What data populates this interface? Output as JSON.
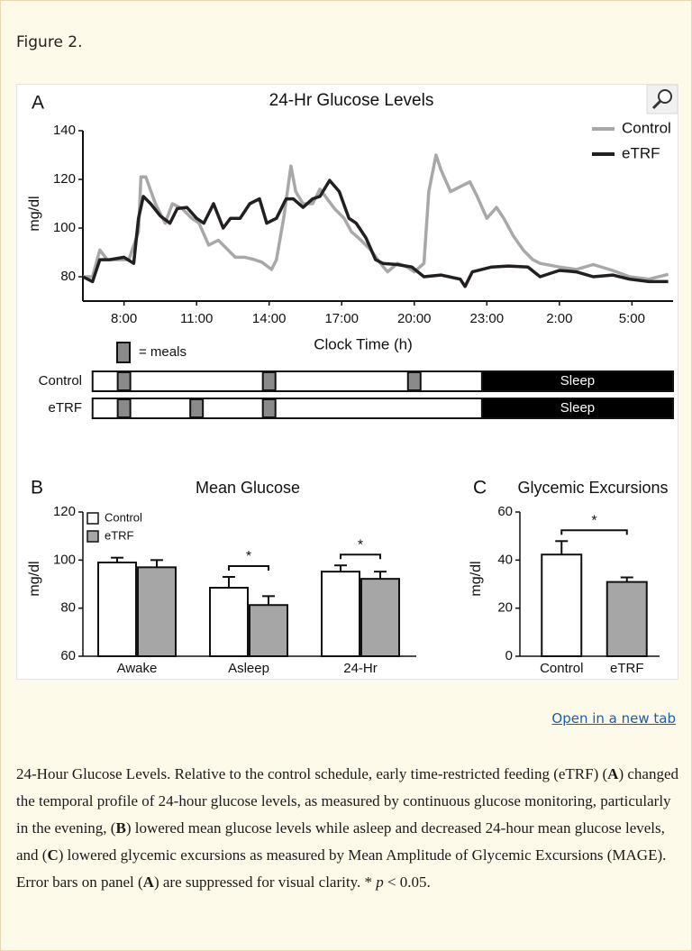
{
  "label": "Figure 2.",
  "chart_data": [
    {
      "type": "line",
      "panel": "A",
      "title": "24-Hr Glucose Levels",
      "ylabel": "mg/dl",
      "xlabel": "Clock Time (h)",
      "xlim": [
        6.3,
        30.7
      ],
      "ylim": [
        70,
        140
      ],
      "xticks": [
        {
          "value": 8,
          "label": "8:00"
        },
        {
          "value": 11,
          "label": "11:00"
        },
        {
          "value": 14,
          "label": "14:00"
        },
        {
          "value": 17,
          "label": "17:00"
        },
        {
          "value": 20,
          "label": "20:00"
        },
        {
          "value": 23,
          "label": "23:00"
        },
        {
          "value": 26,
          "label": "2:00"
        },
        {
          "value": 29,
          "label": "5:00"
        }
      ],
      "yticks": [
        80,
        100,
        120,
        140
      ],
      "legend": "upper right",
      "series": [
        {
          "name": "Control",
          "color": "#a8a8a8",
          "x": [
            6.3,
            6.7,
            7.0,
            7.3,
            7.6,
            8.2,
            8.6,
            8.7,
            8.9,
            9.3,
            9.7,
            10.0,
            10.4,
            10.8,
            11.1,
            11.5,
            11.9,
            12.3,
            12.6,
            13.0,
            13.4,
            13.7,
            14.1,
            14.3,
            14.6,
            14.9,
            15.1,
            15.4,
            15.8,
            16.1,
            16.4,
            16.7,
            17.1,
            17.4,
            17.8,
            18.2,
            18.6,
            18.9,
            19.3,
            19.7,
            20.0,
            20.4,
            20.6,
            20.9,
            21.1,
            21.5,
            21.9,
            22.3,
            22.6,
            23.0,
            23.4,
            23.7,
            24.1,
            24.5,
            24.9,
            25.2,
            26.0,
            26.7,
            27.4,
            28.2,
            28.9,
            29.7,
            30.5
          ],
          "values": [
            80,
            80,
            91,
            87,
            87,
            87,
            98.5,
            121,
            121,
            110,
            102,
            110,
            108,
            104,
            102,
            93,
            95,
            91,
            88,
            88,
            87,
            86,
            83,
            87,
            104,
            125.5,
            115,
            110,
            110,
            116,
            112,
            108,
            104,
            98.5,
            95,
            91,
            85.5,
            82,
            85.5,
            84,
            82,
            85.5,
            115,
            130,
            124,
            115,
            117,
            119,
            113,
            104,
            108.5,
            104,
            96.7,
            91,
            87,
            85.5,
            84,
            83,
            85,
            82.6,
            80,
            79,
            81
          ]
        },
        {
          "name": "eTRF",
          "color": "#231f20",
          "x": [
            6.3,
            6.7,
            7.0,
            7.4,
            8.0,
            8.4,
            8.6,
            8.8,
            9.1,
            9.5,
            9.9,
            10.2,
            10.6,
            11.0,
            11.3,
            11.7,
            12.1,
            12.4,
            12.8,
            13.2,
            13.6,
            13.9,
            14.3,
            14.7,
            15.0,
            15.4,
            15.8,
            16.1,
            16.5,
            16.9,
            17.3,
            17.6,
            18.0,
            18.4,
            18.7,
            19.3,
            19.9,
            20.4,
            21.1,
            21.9,
            22.1,
            22.4,
            23.2,
            23.9,
            24.7,
            25.2,
            26.0,
            26.7,
            27.4,
            28.2,
            28.9,
            29.7,
            30.5
          ],
          "values": [
            80,
            78,
            87,
            87,
            88,
            85.5,
            104,
            113,
            110,
            105,
            102,
            108,
            108.5,
            104,
            102,
            110,
            100,
            104,
            104,
            110,
            112,
            102,
            104,
            112,
            112,
            108.5,
            112,
            113,
            119.6,
            115,
            104,
            102,
            96,
            87,
            85.5,
            85,
            84,
            80,
            80.7,
            79,
            76,
            82,
            84,
            84.4,
            84,
            80,
            82.6,
            82,
            80,
            80.7,
            79,
            78,
            78
          ]
        }
      ]
    },
    {
      "type": "bar",
      "panel": "B",
      "title": "Mean Glucose",
      "ylabel": "mg/dl",
      "categories": [
        "Awake",
        "Asleep",
        "24-Hr"
      ],
      "ylim": [
        60,
        120
      ],
      "yticks": [
        60,
        80,
        100,
        120
      ],
      "legend": "upper left",
      "series": [
        {
          "name": "Control",
          "color": "#ffffff",
          "values": [
            99,
            88.5,
            95.2
          ],
          "errors": [
            2,
            4.5,
            2.6
          ]
        },
        {
          "name": "eTRF",
          "color": "#a6a6a6",
          "values": [
            97,
            81.3,
            92.2
          ],
          "errors": [
            3,
            3.7,
            3
          ]
        }
      ],
      "annotations": [
        {
          "text": "*",
          "category": 1
        },
        {
          "text": "*",
          "category": 2
        }
      ]
    },
    {
      "type": "bar",
      "panel": "C",
      "title": "Glycemic Excursions",
      "ylabel": "mg/dl",
      "categories": [
        "Control",
        "eTRF"
      ],
      "ylim": [
        0,
        60
      ],
      "yticks": [
        0,
        20,
        40,
        60
      ],
      "values": [
        42.3,
        30.9
      ],
      "errors": [
        5.6,
        1.9
      ],
      "colors": [
        "#ffffff",
        "#a6a6a6"
      ],
      "annotation": "*"
    }
  ],
  "schedule": {
    "legend_label": "= meals",
    "sleep_label": "Sleep",
    "start": 6.7,
    "sleep_start": 22.8,
    "rows": [
      {
        "name": "Control",
        "meals": [
          8,
          14,
          20
        ]
      },
      {
        "name": "eTRF",
        "meals": [
          8,
          11,
          14
        ]
      }
    ]
  },
  "link": "Open in a new tab",
  "caption": [
    {
      "text": "24-Hour Glucose Levels. Relative to the control schedule, early time-restricted feeding (eTRF) (",
      "style": "normal"
    },
    {
      "text": "A",
      "style": "bold"
    },
    {
      "text": ") changed the temporal profile of 24-hour glucose levels, as measured by continuous glucose monitoring, particularly in the evening, (",
      "style": "normal"
    },
    {
      "text": "B",
      "style": "bold"
    },
    {
      "text": ") lowered mean glucose levels while asleep and decreased 24-hour mean glucose levels, and (",
      "style": "normal"
    },
    {
      "text": "C",
      "style": "bold"
    },
    {
      "text": ") lowered glycemic excursions as measured by Mean Amplitude of Glycemic Excursions (MAGE). Error bars on panel (",
      "style": "normal"
    },
    {
      "text": "A",
      "style": "bold"
    },
    {
      "text": ") are suppressed for visual clarity. * ",
      "style": "normal"
    },
    {
      "text": "p",
      "style": "italic"
    },
    {
      "text": " < 0.05.",
      "style": "normal"
    }
  ]
}
